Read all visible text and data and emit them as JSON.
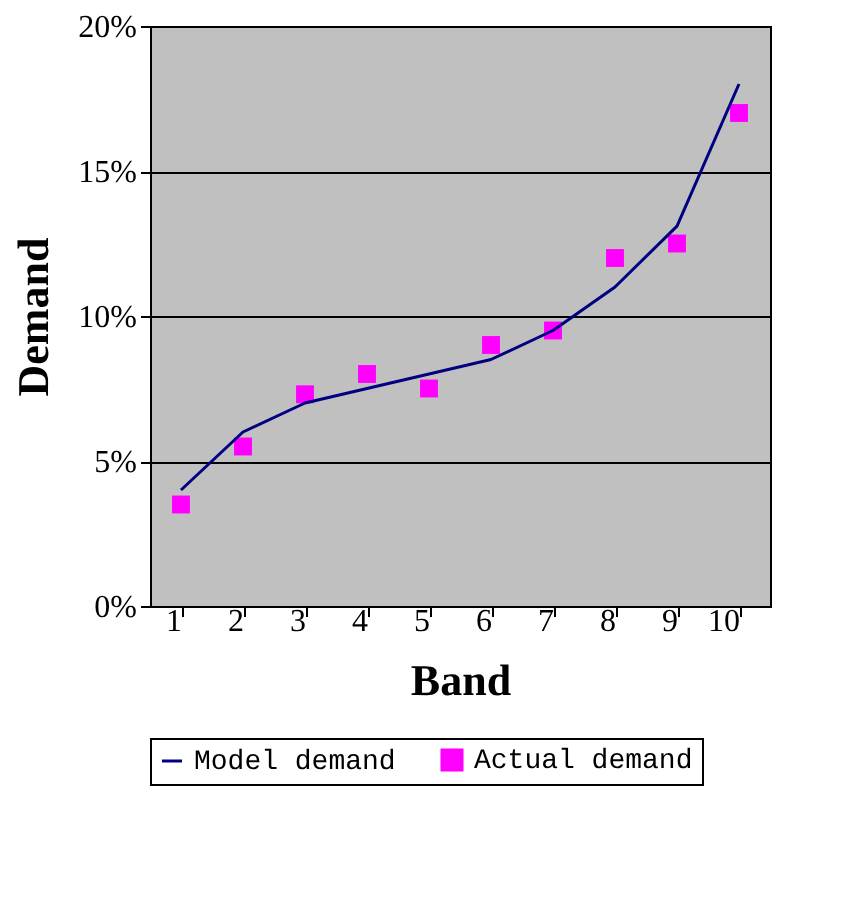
{
  "chart_data": {
    "type": "line",
    "xlabel": "Band",
    "ylabel": "Demand",
    "categories": [
      "1",
      "2",
      "3",
      "4",
      "5",
      "6",
      "7",
      "8",
      "9",
      "10"
    ],
    "series": [
      {
        "name": "Model demand",
        "type": "line",
        "marker": "none",
        "color": "#000080",
        "values": [
          4.0,
          6.0,
          7.0,
          7.5,
          8.0,
          8.5,
          9.5,
          11.0,
          13.1,
          18.0
        ]
      },
      {
        "name": "Actual demand",
        "type": "scatter",
        "marker": "square",
        "color": "#ff00ff",
        "values": [
          3.5,
          5.5,
          7.3,
          8.0,
          7.5,
          9.0,
          9.5,
          12.0,
          12.5,
          17.0
        ]
      }
    ],
    "ylim": [
      0,
      20
    ],
    "yticks": [
      {
        "value": 0,
        "label": "0%"
      },
      {
        "value": 5,
        "label": "5%"
      },
      {
        "value": 10,
        "label": "10%"
      },
      {
        "value": 15,
        "label": "15%"
      },
      {
        "value": 20,
        "label": "20%"
      }
    ],
    "grid": "y",
    "legend": "bottom"
  }
}
